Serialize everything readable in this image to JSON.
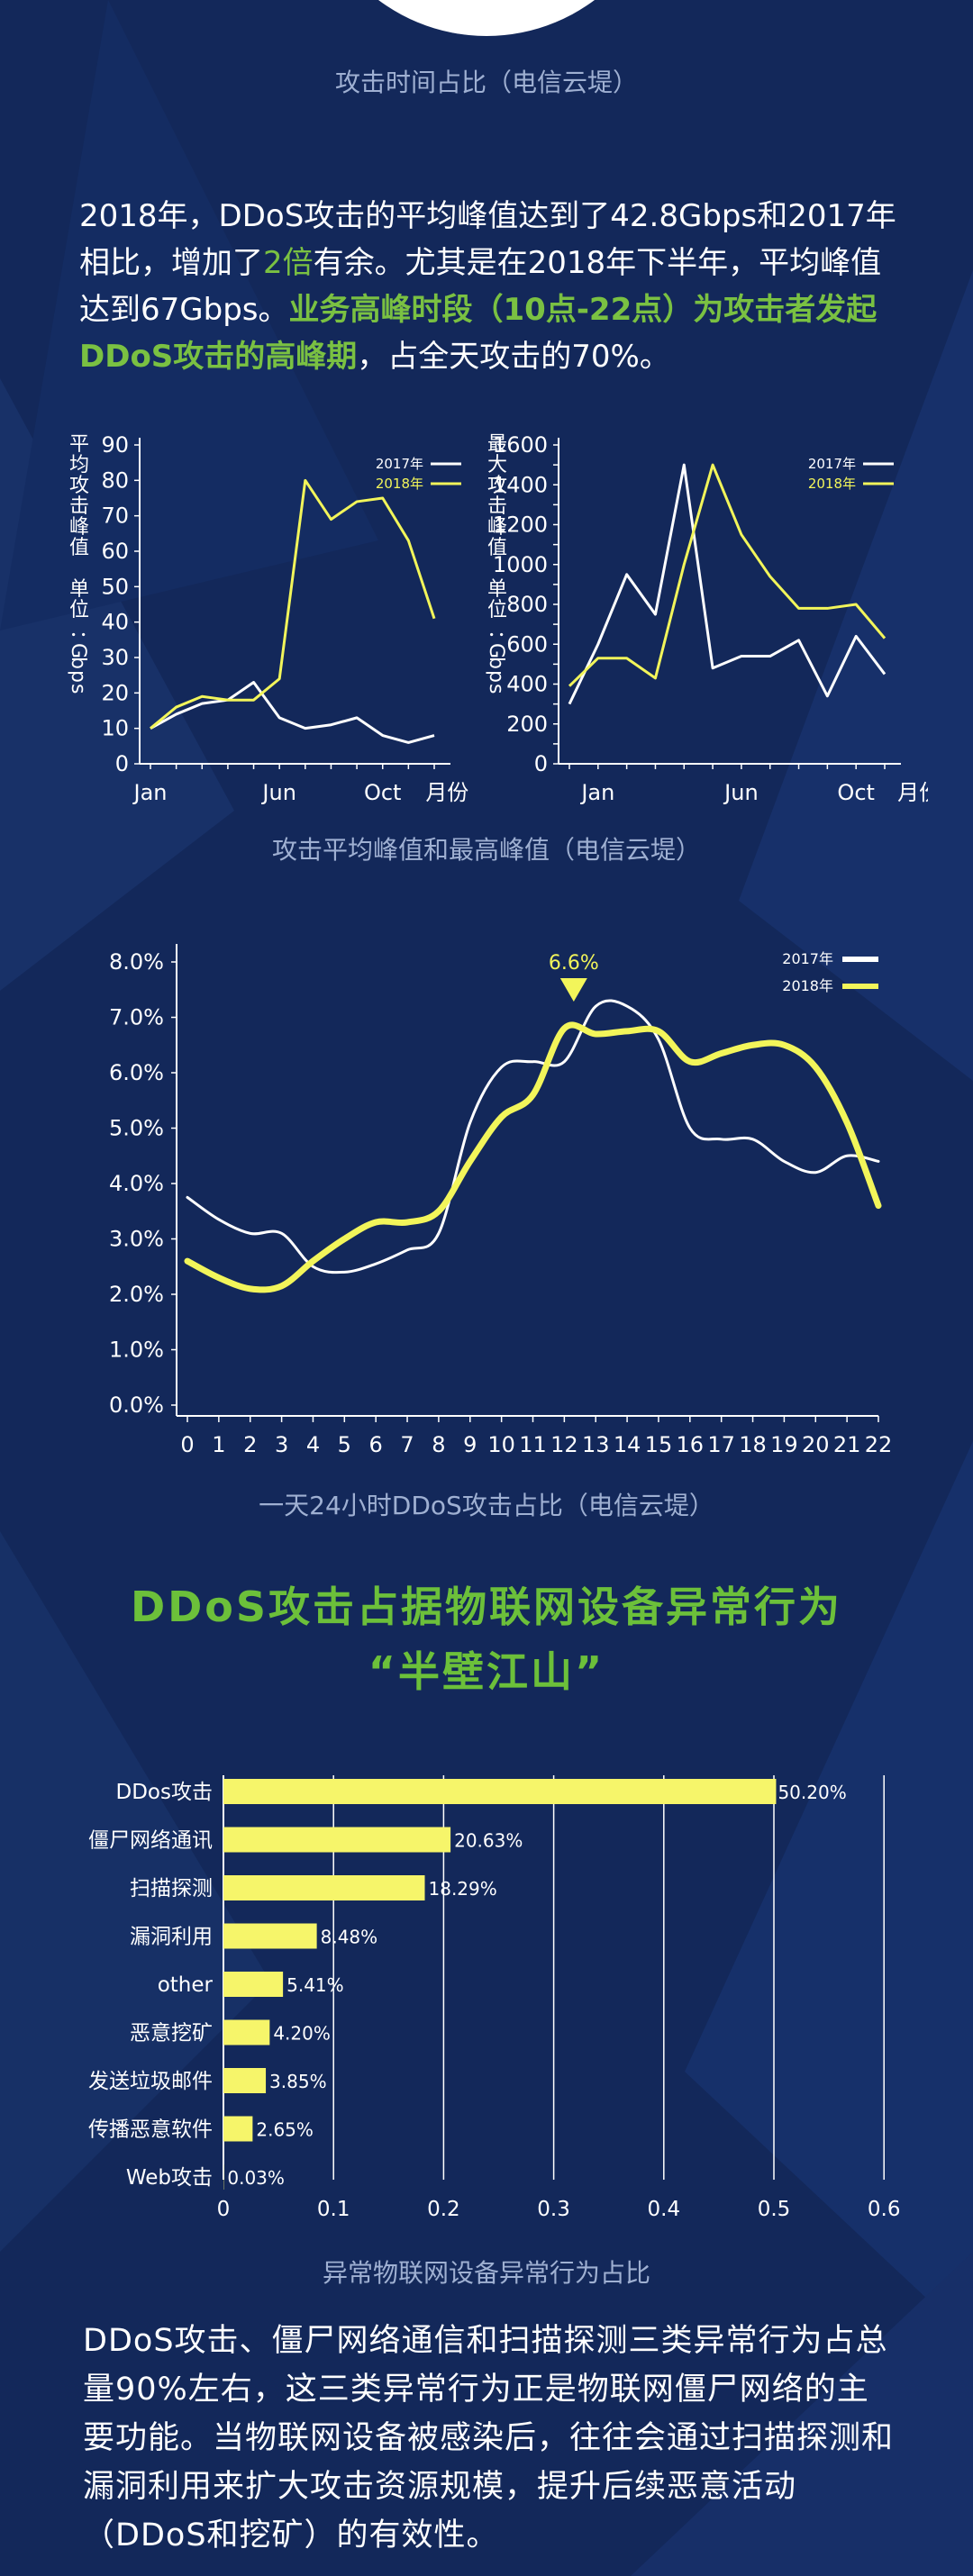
{
  "captions": {
    "attack_time_share": "攻击时间占比（电信云堤）",
    "peak_charts": "攻击平均峰值和最高峰值（电信云堤）",
    "hourly_chart": "一天24小时DDoS攻击占比（电信云堤）",
    "iot_chart": "异常物联网设备异常行为占比"
  },
  "intro": {
    "part1": "2018年，DDoS攻击的平均峰值达到了42.8Gbps和2017年相比，增加了",
    "num": "2倍",
    "part2": "有余。尤其是在2018年下半年，平均峰值达到67Gbps。",
    "highlight": "业务高峰时段（10点-22点）为攻击者发起DDoS攻击的高峰期",
    "part3": "，占全天攻击的70%。"
  },
  "section": {
    "line1": "DDoS攻击占据物联网设备异常行为",
    "line2": "“半壁江山”"
  },
  "closing": {
    "text": "DDoS攻击、僵尸网络通信和扫描探测三类异常行为占总量90%左右，这三类异常行为正是物联网僵尸网络的主要功能。当物联网设备被感染后，往往会通过扫描探测和漏洞利用来扩大攻击资源规模，提升后续恶意活动（DDoS和挖矿）的有效性。"
  },
  "colors": {
    "y2017": "#ffffff",
    "y2018": "#f2f55a",
    "bar": "#f6f56a",
    "accent": "#7ac142"
  },
  "chart_data": [
    {
      "type": "line",
      "title": "",
      "ylabel": "平均攻击峰值 单位：Gbps",
      "xlabel": "月份",
      "x": [
        1,
        2,
        3,
        4,
        5,
        6,
        7,
        8,
        9,
        10,
        11,
        12
      ],
      "x_ticks": [
        {
          "x": 1,
          "label": "Jan"
        },
        {
          "x": 6,
          "label": "Jun"
        },
        {
          "x": 10,
          "label": "Oct"
        },
        {
          "x": 12.5,
          "label": "月份"
        }
      ],
      "ylim": [
        0,
        90
      ],
      "yticks": [
        0,
        10,
        20,
        30,
        40,
        50,
        60,
        70,
        80,
        90
      ],
      "legend": "top-right",
      "series": [
        {
          "name": "2017年",
          "color": "#ffffff",
          "values": [
            10,
            14,
            17,
            18,
            23,
            13,
            10,
            11,
            13,
            8,
            6,
            8
          ]
        },
        {
          "name": "2018年",
          "color": "#f2f55a",
          "values": [
            10,
            16,
            19,
            18,
            18,
            24,
            80,
            69,
            74,
            75,
            63,
            41
          ]
        }
      ]
    },
    {
      "type": "line",
      "title": "",
      "ylabel": "最大攻击峰值 单位：Gbps",
      "xlabel": "月份",
      "x": [
        1,
        2,
        3,
        4,
        5,
        6,
        7,
        8,
        9,
        10,
        11,
        12
      ],
      "x_ticks": [
        {
          "x": 2,
          "label": "Jan"
        },
        {
          "x": 7,
          "label": "Jun"
        },
        {
          "x": 11,
          "label": "Oct"
        },
        {
          "x": 13.2,
          "label": "月份"
        }
      ],
      "ylim": [
        0,
        1600
      ],
      "yticks": [
        0,
        100,
        200,
        300,
        400,
        500,
        600,
        700,
        800,
        900,
        1000,
        1100,
        1200,
        1300,
        1400,
        1500,
        1600
      ],
      "legend": "top-right",
      "series": [
        {
          "name": "2017年",
          "color": "#ffffff",
          "values": [
            300,
            600,
            950,
            750,
            1500,
            480,
            540,
            540,
            620,
            340,
            640,
            450
          ]
        },
        {
          "name": "2018年",
          "color": "#f2f55a",
          "values": [
            390,
            530,
            530,
            430,
            1000,
            1500,
            1150,
            940,
            780,
            780,
            800,
            630
          ]
        }
      ]
    },
    {
      "type": "line",
      "title": "",
      "xlabel": "",
      "ylabel": "",
      "x": [
        0,
        1,
        2,
        3,
        4,
        5,
        6,
        7,
        8,
        9,
        10,
        11,
        12,
        13,
        14,
        15,
        16,
        17,
        18,
        19,
        20,
        21,
        22
      ],
      "ylim": [
        0,
        8
      ],
      "yticks": [
        "0.0%",
        "1.0%",
        "2.0%",
        "3.0%",
        "4.0%",
        "5.0%",
        "6.0%",
        "7.0%",
        "8.0%"
      ],
      "annotation": {
        "x": 12.3,
        "label": "6.6%"
      },
      "legend": "top-right",
      "series": [
        {
          "name": "2017年",
          "color": "#ffffff",
          "values": [
            3.75,
            3.35,
            3.1,
            3.1,
            2.5,
            2.4,
            2.55,
            2.8,
            3.1,
            5.1,
            6.1,
            6.2,
            6.2,
            7.2,
            7.2,
            6.6,
            5.0,
            4.8,
            4.8,
            4.4,
            4.2,
            4.5,
            4.4
          ]
        },
        {
          "name": "2018年",
          "color": "#f2f55a",
          "values": [
            2.6,
            2.3,
            2.1,
            2.15,
            2.6,
            3.0,
            3.3,
            3.3,
            3.5,
            4.4,
            5.2,
            5.6,
            6.8,
            6.7,
            6.75,
            6.75,
            6.2,
            6.35,
            6.5,
            6.5,
            6.1,
            5.1,
            3.6
          ]
        }
      ]
    },
    {
      "type": "bar",
      "orientation": "horizontal",
      "title": "",
      "categories": [
        "DDos攻击",
        "僵尸网络通讯",
        "扫描探测",
        "漏洞利用",
        "other",
        "恶意挖矿",
        "发送垃圾邮件",
        "传播恶意软件",
        "Web攻击"
      ],
      "values": [
        0.502,
        0.2063,
        0.1829,
        0.0848,
        0.0541,
        0.042,
        0.0385,
        0.0265,
        0.0003
      ],
      "value_labels": [
        "50.20%",
        "20.63%",
        "18.29%",
        "8.48%",
        "5.41%",
        "4.20%",
        "3.85%",
        "2.65%",
        "0.03%"
      ],
      "xlim": [
        0,
        0.6
      ],
      "xticks": [
        "0",
        "0.1",
        "0.2",
        "0.3",
        "0.4",
        "0.5",
        "0.6"
      ],
      "grid": true
    }
  ]
}
